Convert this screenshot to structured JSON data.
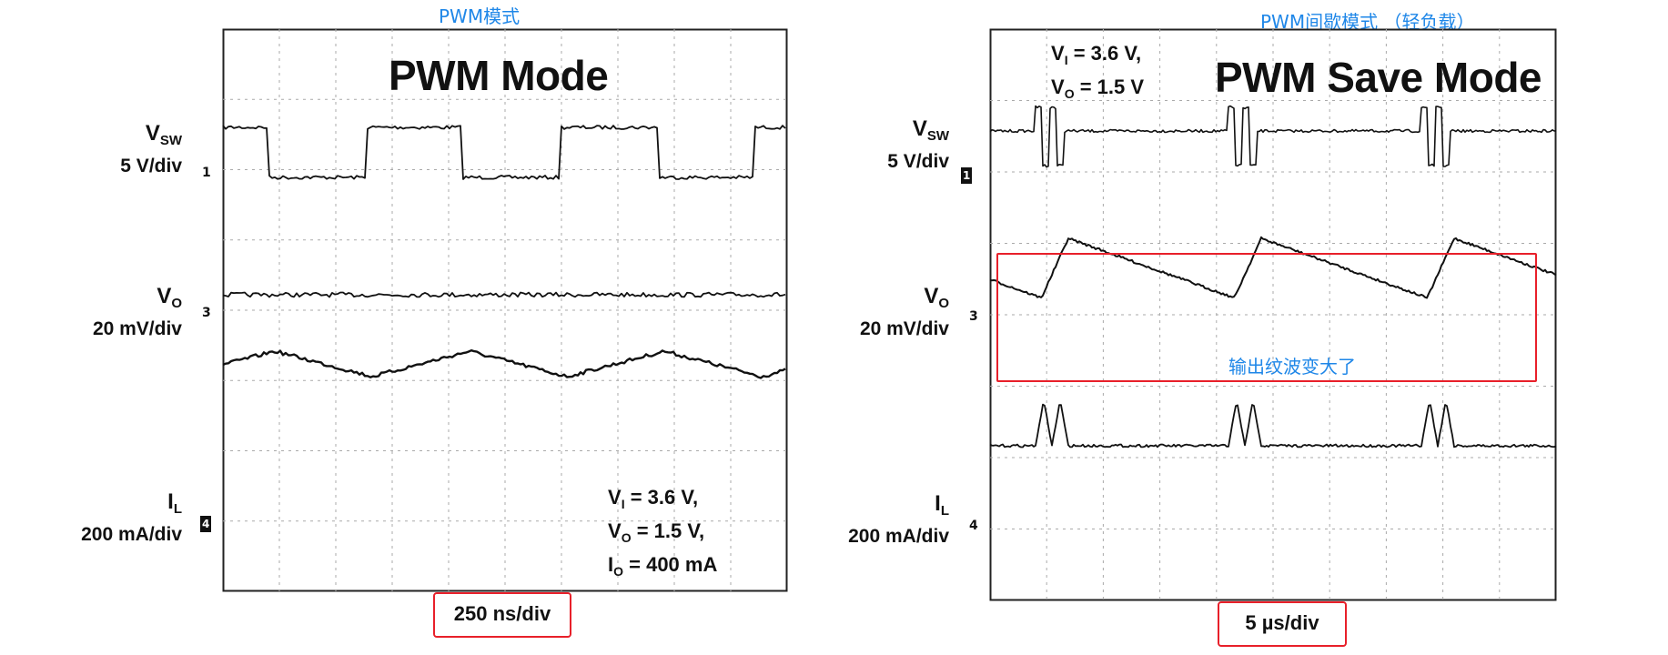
{
  "chart_data": [
    {
      "type": "line",
      "caption": "PWM模式",
      "title": "PWM Mode",
      "timebase": "250 ns/div",
      "conditions": [
        "V",
        "I",
        " = 3.6 V,",
        "V",
        "O",
        " = 1.5 V,",
        "I",
        "O",
        " = 400 mA"
      ],
      "grid": true,
      "channels": [
        {
          "name": "V",
          "sub": "SW",
          "scale": "5 V/div",
          "marker": "1"
        },
        {
          "name": "V",
          "sub": "O",
          "scale": "20 mV/div",
          "marker": "3"
        },
        {
          "name": "I",
          "sub": "L",
          "scale": "200 mA/div",
          "marker": "4"
        }
      ]
    },
    {
      "type": "line",
      "caption": "PWM间歇模式 （轻负载）",
      "title": "PWM Save Mode",
      "timebase": "5 µs/div",
      "conditions": [
        "V",
        "I",
        " = 3.6 V,",
        "V",
        "O",
        " = 1.5 V"
      ],
      "annotation": "输出纹波变大了",
      "grid": true,
      "channels": [
        {
          "name": "V",
          "sub": "SW",
          "scale": "5 V/div",
          "marker": "1"
        },
        {
          "name": "V",
          "sub": "O",
          "scale": "20 mV/div",
          "marker": "3"
        },
        {
          "name": "I",
          "sub": "L",
          "scale": "200 mA/div",
          "marker": "4"
        }
      ]
    }
  ]
}
